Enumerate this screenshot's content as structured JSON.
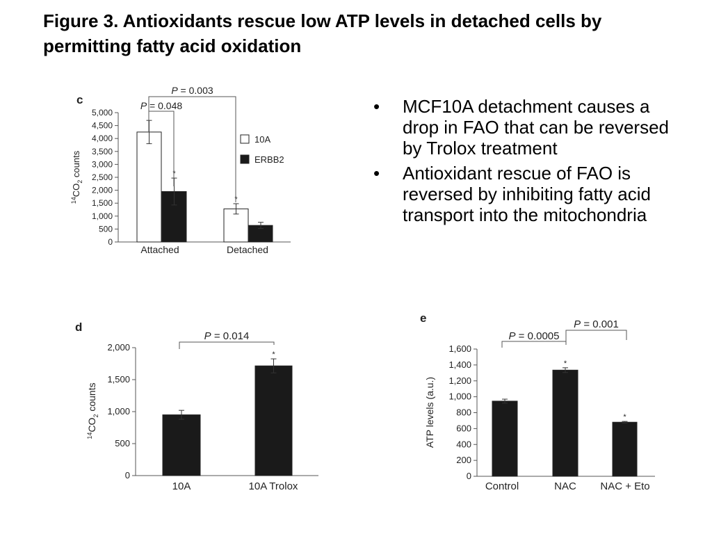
{
  "title": "Figure 3. Antioxidants rescue low ATP levels in detached cells by permitting fatty acid oxidation",
  "bullets": [
    "MCF10A detachment causes a drop in FAO that can be reversed by Trolox treatment",
    "Antioxidant rescue of FAO is reversed by inhibiting fatty acid transport into the mitochondria"
  ],
  "bullet_glyph": "•",
  "chart_data": [
    {
      "panel": "c",
      "type": "bar",
      "ylabel_sup": "14",
      "ylabel_main": "CO",
      "ylabel_sub": "2",
      "ylabel_rest": " counts",
      "categories": [
        "Attached",
        "Detached"
      ],
      "series": [
        {
          "name": "10A",
          "color": "#ffffff",
          "values": [
            4250,
            1280
          ],
          "errors": [
            450,
            200
          ],
          "stars": [
            "",
            "*"
          ]
        },
        {
          "name": "ERBB2",
          "color": "#1a1a1a",
          "values": [
            1950,
            640
          ],
          "errors": [
            520,
            120
          ],
          "stars": [
            "*",
            ""
          ]
        }
      ],
      "ylim": [
        0,
        5000
      ],
      "yticks": [
        0,
        500,
        1000,
        1500,
        2000,
        2500,
        3000,
        3500,
        4000,
        4500,
        5000
      ],
      "ytick_labels": [
        "0",
        "500",
        "1,000",
        "1,500",
        "2,000",
        "2,500",
        "3,000",
        "3,500",
        "4,000",
        "4,500",
        "5,000"
      ],
      "pvalues": [
        {
          "label": "P = 0.048",
          "p": "P",
          "rest": " = 0.048"
        },
        {
          "label": "P = 0.003",
          "p": "P",
          "rest": " = 0.003"
        }
      ],
      "legend_position": "right"
    },
    {
      "panel": "d",
      "type": "bar",
      "ylabel_sup": "14",
      "ylabel_main": "CO",
      "ylabel_sub": "2",
      "ylabel_rest": " counts",
      "categories": [
        "10A",
        "10A Trolox"
      ],
      "values": [
        950,
        1715
      ],
      "errors": [
        70,
        110
      ],
      "stars": [
        "",
        "*"
      ],
      "color": "#1a1a1a",
      "ylim": [
        0,
        2000
      ],
      "yticks": [
        0,
        500,
        1000,
        1500,
        2000
      ],
      "ytick_labels": [
        "0",
        "500",
        "1,000",
        "1,500",
        "2,000"
      ],
      "pvalues": [
        {
          "label": "P = 0.014",
          "p": "P",
          "rest": " = 0.014"
        }
      ]
    },
    {
      "panel": "e",
      "type": "bar",
      "ylabel": "ATP levels (a.u.)",
      "categories": [
        "Control",
        "NAC",
        "NAC + Eto"
      ],
      "values": [
        945,
        1335,
        680
      ],
      "errors": [
        25,
        30,
        10
      ],
      "stars": [
        "",
        "*",
        "*"
      ],
      "color": "#1a1a1a",
      "ylim": [
        0,
        1600
      ],
      "yticks": [
        0,
        200,
        400,
        600,
        800,
        1000,
        1200,
        1400,
        1600
      ],
      "ytick_labels": [
        "0",
        "200",
        "400",
        "600",
        "800",
        "1,000",
        "1,200",
        "1,400",
        "1,600"
      ],
      "pvalues": [
        {
          "label": "P = 0.0005",
          "p": "P",
          "rest": " = 0.0005"
        },
        {
          "label": "P = 0.001",
          "p": "P",
          "rest": " = 0.001"
        }
      ]
    }
  ]
}
